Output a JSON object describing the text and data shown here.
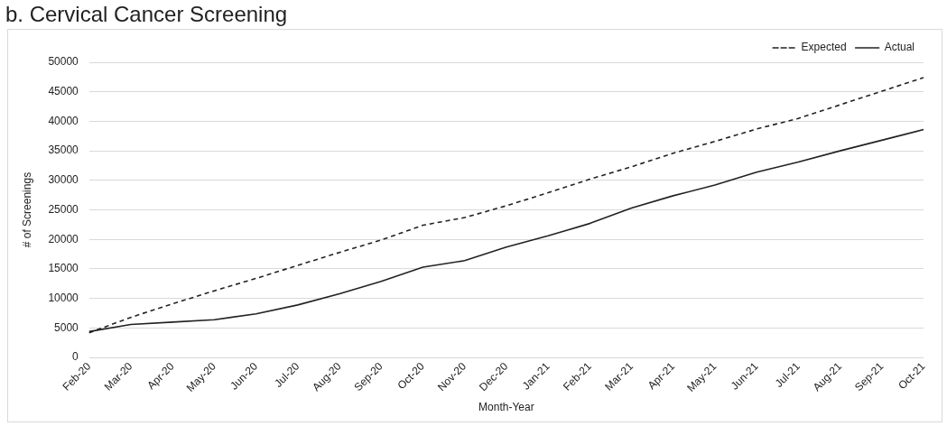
{
  "chart_data": {
    "type": "line",
    "title": "b. Cervical Cancer Screening",
    "xlabel": "Month-Year",
    "ylabel": "# of Screenings",
    "categories": [
      "Feb-20",
      "Mar-20",
      "Apr-20",
      "May-20",
      "Jun-20",
      "Jul-20",
      "Aug-20",
      "Sep-20",
      "Oct-20",
      "Nov-20",
      "Dec-20",
      "Jan-21",
      "Feb-21",
      "Mar-21",
      "Apr-21",
      "May-21",
      "Jun-21",
      "Jul-21",
      "Aug-21",
      "Sep-21",
      "Oct-21"
    ],
    "series": [
      {
        "name": "Expected",
        "color": "#222222",
        "line_style": "dashed",
        "values": [
          4200,
          6800,
          9100,
          11300,
          13400,
          15600,
          17800,
          19900,
          22400,
          23700,
          25700,
          27900,
          30200,
          32300,
          34600,
          36600,
          38700,
          40500,
          42800,
          45100,
          47400
        ]
      },
      {
        "name": "Actual",
        "color": "#222222",
        "line_style": "solid",
        "values": [
          4400,
          5600,
          6000,
          6400,
          7400,
          8900,
          10800,
          12900,
          15300,
          16400,
          18700,
          20600,
          22700,
          25300,
          27400,
          29200,
          31400,
          33100,
          35000,
          36800,
          38600
        ]
      }
    ],
    "ylim": [
      0,
      50000
    ],
    "yticks": [
      0,
      5000,
      10000,
      15000,
      20000,
      25000,
      30000,
      35000,
      40000,
      45000,
      50000
    ],
    "grid": "y",
    "legend": "top right",
    "marker": "none"
  }
}
